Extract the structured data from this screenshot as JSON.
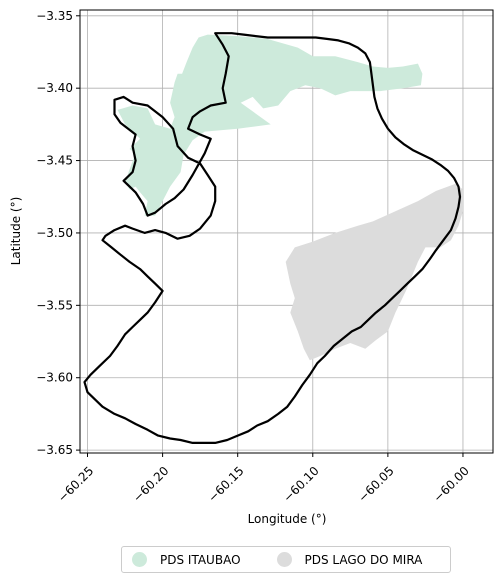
{
  "chart_data": {
    "type": "map",
    "xlabel": "Longitude (°)",
    "ylabel": "Latitude (°)",
    "xlim": [
      -60.255,
      -59.98
    ],
    "ylim": [
      -3.652,
      -3.346
    ],
    "xticks": [
      -60.25,
      -60.2,
      -60.15,
      -60.1,
      -60.05,
      -60.0
    ],
    "xtick_labels": [
      "−60.25",
      "−60.20",
      "−60.15",
      "−60.10",
      "−60.05",
      "−60.00"
    ],
    "yticks": [
      -3.35,
      -3.4,
      -3.45,
      -3.5,
      -3.55,
      -3.6,
      -3.65
    ],
    "ytick_labels": [
      "−3.35",
      "−3.40",
      "−3.45",
      "−3.50",
      "−3.55",
      "−3.60",
      "−3.65"
    ],
    "grid": true,
    "legend_position": "bottom-center",
    "legend": [
      {
        "label": "PDS ITAUBAO",
        "color": "#cdeadb"
      },
      {
        "label": "PDS LAGO DO MIRA",
        "color": "#dcdcdc"
      }
    ],
    "regions": [
      {
        "label": "PDS ITAUBAO",
        "color": "#cdeadb",
        "polygon": [
          [
            -60.187,
            -3.39
          ],
          [
            -60.184,
            -3.382
          ],
          [
            -60.18,
            -3.372
          ],
          [
            -60.176,
            -3.365
          ],
          [
            -60.17,
            -3.363
          ],
          [
            -60.15,
            -3.364
          ],
          [
            -60.13,
            -3.366
          ],
          [
            -60.11,
            -3.372
          ],
          [
            -60.1,
            -3.378
          ],
          [
            -60.085,
            -3.378
          ],
          [
            -60.07,
            -3.382
          ],
          [
            -60.06,
            -3.385
          ],
          [
            -60.05,
            -3.386
          ],
          [
            -60.04,
            -3.385
          ],
          [
            -60.03,
            -3.383
          ],
          [
            -60.027,
            -3.39
          ],
          [
            -60.028,
            -3.398
          ],
          [
            -60.04,
            -3.4
          ],
          [
            -60.055,
            -3.402
          ],
          [
            -60.075,
            -3.402
          ],
          [
            -60.085,
            -3.405
          ],
          [
            -60.095,
            -3.4
          ],
          [
            -60.105,
            -3.398
          ],
          [
            -60.115,
            -3.402
          ],
          [
            -60.123,
            -3.412
          ],
          [
            -60.133,
            -3.414
          ],
          [
            -60.14,
            -3.406
          ],
          [
            -60.148,
            -3.41
          ],
          [
            -60.128,
            -3.425
          ],
          [
            -60.15,
            -3.428
          ],
          [
            -60.172,
            -3.43
          ],
          [
            -60.18,
            -3.436
          ],
          [
            -60.186,
            -3.446
          ],
          [
            -60.188,
            -3.458
          ],
          [
            -60.195,
            -3.468
          ],
          [
            -60.2,
            -3.478
          ],
          [
            -60.205,
            -3.488
          ],
          [
            -60.212,
            -3.488
          ],
          [
            -60.21,
            -3.478
          ],
          [
            -60.215,
            -3.472
          ],
          [
            -60.218,
            -3.468
          ],
          [
            -60.222,
            -3.47
          ],
          [
            -60.225,
            -3.465
          ],
          [
            -60.222,
            -3.456
          ],
          [
            -60.218,
            -3.445
          ],
          [
            -60.222,
            -3.442
          ],
          [
            -60.215,
            -3.435
          ],
          [
            -60.22,
            -3.43
          ],
          [
            -60.225,
            -3.425
          ],
          [
            -60.23,
            -3.415
          ],
          [
            -60.22,
            -3.412
          ],
          [
            -60.21,
            -3.414
          ],
          [
            -60.205,
            -3.425
          ],
          [
            -60.195,
            -3.428
          ],
          [
            -60.192,
            -3.42
          ],
          [
            -60.195,
            -3.41
          ],
          [
            -60.192,
            -3.396
          ],
          [
            -60.19,
            -3.39
          ]
        ]
      },
      {
        "label": "PDS LAGO DO MIRA",
        "color": "#dcdcdc",
        "polygon": [
          [
            -60.118,
            -3.52
          ],
          [
            -60.112,
            -3.51
          ],
          [
            -60.1,
            -3.506
          ],
          [
            -60.085,
            -3.5
          ],
          [
            -60.07,
            -3.495
          ],
          [
            -60.06,
            -3.492
          ],
          [
            -60.045,
            -3.485
          ],
          [
            -60.03,
            -3.478
          ],
          [
            -60.018,
            -3.471
          ],
          [
            -60.005,
            -3.466
          ],
          [
            -60.0,
            -3.47
          ],
          [
            -60.0,
            -3.485
          ],
          [
            -60.003,
            -3.495
          ],
          [
            -60.008,
            -3.505
          ],
          [
            -60.015,
            -3.51
          ],
          [
            -60.025,
            -3.51
          ],
          [
            -60.03,
            -3.52
          ],
          [
            -60.038,
            -3.54
          ],
          [
            -60.045,
            -3.555
          ],
          [
            -60.05,
            -3.568
          ],
          [
            -60.058,
            -3.574
          ],
          [
            -60.065,
            -3.58
          ],
          [
            -60.075,
            -3.576
          ],
          [
            -60.085,
            -3.58
          ],
          [
            -60.095,
            -3.585
          ],
          [
            -60.102,
            -3.588
          ],
          [
            -60.106,
            -3.58
          ],
          [
            -60.11,
            -3.568
          ],
          [
            -60.115,
            -3.555
          ],
          [
            -60.112,
            -3.545
          ],
          [
            -60.115,
            -3.535
          ]
        ]
      }
    ],
    "boundaries": [
      [
        [
          -60.165,
          -3.362
        ],
        [
          -60.16,
          -3.37
        ],
        [
          -60.156,
          -3.378
        ],
        [
          -60.158,
          -3.39
        ],
        [
          -60.16,
          -3.4
        ],
        [
          -60.158,
          -3.41
        ],
        [
          -60.168,
          -3.412
        ],
        [
          -60.175,
          -3.416
        ],
        [
          -60.18,
          -3.42
        ],
        [
          -60.183,
          -3.428
        ],
        [
          -60.175,
          -3.432
        ],
        [
          -60.168,
          -3.435
        ],
        [
          -60.172,
          -3.445
        ],
        [
          -60.18,
          -3.46
        ],
        [
          -60.186,
          -3.47
        ],
        [
          -60.192,
          -3.476
        ],
        [
          -60.198,
          -3.48
        ],
        [
          -60.205,
          -3.486
        ],
        [
          -60.21,
          -3.488
        ],
        [
          -60.213,
          -3.48
        ],
        [
          -60.218,
          -3.472
        ],
        [
          -60.222,
          -3.468
        ],
        [
          -60.226,
          -3.464
        ],
        [
          -60.22,
          -3.458
        ],
        [
          -60.218,
          -3.45
        ],
        [
          -60.22,
          -3.44
        ],
        [
          -60.218,
          -3.432
        ],
        [
          -60.228,
          -3.424
        ],
        [
          -60.232,
          -3.418
        ],
        [
          -60.232,
          -3.408
        ],
        [
          -60.226,
          -3.406
        ],
        [
          -60.22,
          -3.41
        ],
        [
          -60.21,
          -3.412
        ],
        [
          -60.2,
          -3.42
        ],
        [
          -60.193,
          -3.428
        ],
        [
          -60.19,
          -3.44
        ],
        [
          -60.183,
          -3.448
        ],
        [
          -60.175,
          -3.452
        ],
        [
          -60.17,
          -3.46
        ],
        [
          -60.165,
          -3.468
        ],
        [
          -60.165,
          -3.478
        ],
        [
          -60.168,
          -3.488
        ],
        [
          -60.175,
          -3.497
        ],
        [
          -60.182,
          -3.502
        ],
        [
          -60.19,
          -3.504
        ],
        [
          -60.198,
          -3.5
        ],
        [
          -60.205,
          -3.498
        ],
        [
          -60.212,
          -3.5
        ],
        [
          -60.22,
          -3.497
        ],
        [
          -60.225,
          -3.495
        ],
        [
          -60.232,
          -3.498
        ],
        [
          -60.238,
          -3.502
        ],
        [
          -60.24,
          -3.505
        ],
        [
          -60.234,
          -3.51
        ],
        [
          -60.228,
          -3.515
        ],
        [
          -60.222,
          -3.52
        ],
        [
          -60.215,
          -3.525
        ],
        [
          -60.21,
          -3.53
        ],
        [
          -60.205,
          -3.535
        ],
        [
          -60.2,
          -3.54
        ],
        [
          -60.205,
          -3.548
        ],
        [
          -60.21,
          -3.555
        ],
        [
          -60.215,
          -3.56
        ],
        [
          -60.22,
          -3.565
        ],
        [
          -60.225,
          -3.57
        ],
        [
          -60.23,
          -3.578
        ],
        [
          -60.235,
          -3.585
        ],
        [
          -60.242,
          -3.592
        ],
        [
          -60.248,
          -3.598
        ],
        [
          -60.252,
          -3.603
        ],
        [
          -60.25,
          -3.61
        ],
        [
          -60.245,
          -3.615
        ],
        [
          -60.24,
          -3.62
        ],
        [
          -60.232,
          -3.625
        ],
        [
          -60.225,
          -3.628
        ],
        [
          -60.218,
          -3.632
        ],
        [
          -60.21,
          -3.636
        ],
        [
          -60.203,
          -3.64
        ],
        [
          -60.195,
          -3.642
        ],
        [
          -60.188,
          -3.643
        ],
        [
          -60.18,
          -3.645
        ],
        [
          -60.172,
          -3.645
        ],
        [
          -60.165,
          -3.645
        ],
        [
          -60.157,
          -3.643
        ],
        [
          -60.15,
          -3.64
        ],
        [
          -60.143,
          -3.637
        ],
        [
          -60.137,
          -3.633
        ],
        [
          -60.13,
          -3.63
        ],
        [
          -60.123,
          -3.625
        ],
        [
          -60.117,
          -3.62
        ],
        [
          -60.112,
          -3.613
        ],
        [
          -60.107,
          -3.605
        ],
        [
          -60.102,
          -3.598
        ],
        [
          -60.097,
          -3.59
        ],
        [
          -60.092,
          -3.585
        ],
        [
          -60.086,
          -3.578
        ],
        [
          -60.08,
          -3.573
        ],
        [
          -60.074,
          -3.568
        ],
        [
          -60.068,
          -3.565
        ],
        [
          -60.063,
          -3.56
        ],
        [
          -60.058,
          -3.555
        ],
        [
          -60.052,
          -3.55
        ],
        [
          -60.047,
          -3.545
        ],
        [
          -60.042,
          -3.54
        ],
        [
          -60.037,
          -3.535
        ],
        [
          -60.032,
          -3.53
        ],
        [
          -60.027,
          -3.525
        ],
        [
          -60.022,
          -3.518
        ],
        [
          -60.018,
          -3.512
        ],
        [
          -60.013,
          -3.505
        ],
        [
          -60.008,
          -3.498
        ],
        [
          -60.005,
          -3.49
        ],
        [
          -60.003,
          -3.482
        ],
        [
          -60.002,
          -3.475
        ],
        [
          -60.003,
          -3.468
        ],
        [
          -60.006,
          -3.462
        ],
        [
          -60.01,
          -3.457
        ],
        [
          -60.015,
          -3.453
        ],
        [
          -60.021,
          -3.449
        ],
        [
          -60.027,
          -3.446
        ],
        [
          -60.033,
          -3.443
        ],
        [
          -60.039,
          -3.439
        ],
        [
          -60.045,
          -3.434
        ],
        [
          -60.05,
          -3.428
        ],
        [
          -60.054,
          -3.421
        ],
        [
          -60.057,
          -3.414
        ],
        [
          -60.059,
          -3.406
        ],
        [
          -60.06,
          -3.398
        ],
        [
          -60.061,
          -3.39
        ],
        [
          -60.062,
          -3.382
        ],
        [
          -60.065,
          -3.376
        ],
        [
          -60.07,
          -3.372
        ],
        [
          -60.076,
          -3.369
        ],
        [
          -60.083,
          -3.367
        ],
        [
          -60.09,
          -3.366
        ],
        [
          -60.098,
          -3.365
        ],
        [
          -60.106,
          -3.365
        ],
        [
          -60.114,
          -3.365
        ],
        [
          -60.122,
          -3.365
        ],
        [
          -60.13,
          -3.365
        ],
        [
          -60.138,
          -3.364
        ],
        [
          -60.146,
          -3.363
        ],
        [
          -60.154,
          -3.362
        ]
      ]
    ]
  }
}
